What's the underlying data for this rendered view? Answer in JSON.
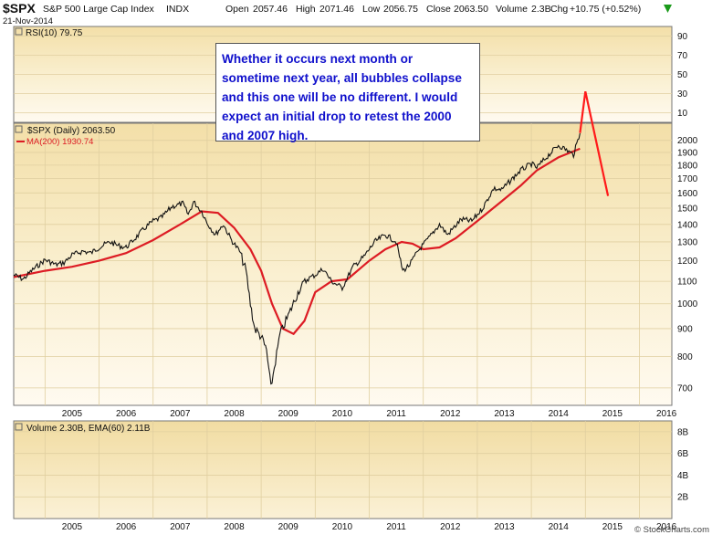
{
  "header": {
    "symbol": "$SPX",
    "name": "S&P 500 Large Cap Index",
    "exchange": "INDX",
    "date": "21-Nov-2014",
    "open_label": "Open",
    "open": "2057.46",
    "high_label": "High",
    "high": "2071.46",
    "low_label": "Low",
    "low": "2056.75",
    "close_label": "Close",
    "close": "2063.50",
    "volume_label": "Volume",
    "volume": "2.3B",
    "chg_label": "Chg",
    "chg": "+10.75 (+0.52%)",
    "watermark": "© StockCharts.com"
  },
  "annotation": {
    "text": "Whether it occurs next month or sometime next year, all bubbles collapse and this one will be no different. I would expect an initial drop to retest the 2000 and 2007 high."
  },
  "colors": {
    "price": "#111111",
    "ma": "#dd1c24",
    "projection": "#ff1a1a",
    "annotation_text": "#1010cc",
    "panel_bg": "#f5e3b4"
  },
  "chart_data": [
    {
      "type": "line",
      "panel": "rsi",
      "legend": "RSI(10) 79.75",
      "y_ticks": [
        10,
        30,
        50,
        70,
        90
      ],
      "ylim": [
        0,
        100
      ]
    },
    {
      "type": "line",
      "panel": "price",
      "legend_price": "$SPX (Daily) 2063.50",
      "legend_ma": "MA(200) 1930.74",
      "x_ticks": [
        "2005",
        "2006",
        "2007",
        "2008",
        "2009",
        "2010",
        "2011",
        "2012",
        "2013",
        "2014",
        "2015",
        "2016"
      ],
      "y_ticks": [
        700,
        800,
        900,
        1000,
        1100,
        1200,
        1300,
        1400,
        1500,
        1600,
        1700,
        1800,
        1900,
        2000
      ],
      "ylim": [
        650,
        2150
      ],
      "xlim": [
        2004.42,
        2016.6
      ],
      "log_scale": true,
      "series": [
        {
          "key": "price",
          "x": [
            2004.42,
            2004.6,
            2004.75,
            2005.0,
            2005.2,
            2005.35,
            2005.5,
            2005.7,
            2005.85,
            2006.0,
            2006.2,
            2006.35,
            2006.5,
            2006.7,
            2006.85,
            2007.0,
            2007.15,
            2007.35,
            2007.55,
            2007.65,
            2007.75,
            2007.9,
            2008.0,
            2008.15,
            2008.3,
            2008.45,
            2008.6,
            2008.72,
            2008.8,
            2008.88,
            2009.0,
            2009.1,
            2009.18,
            2009.35,
            2009.5,
            2009.7,
            2009.85,
            2010.0,
            2010.15,
            2010.3,
            2010.5,
            2010.7,
            2010.9,
            2011.1,
            2011.3,
            2011.5,
            2011.62,
            2011.75,
            2011.9,
            2012.1,
            2012.3,
            2012.45,
            2012.7,
            2012.9,
            2013.1,
            2013.3,
            2013.45,
            2013.6,
            2013.8,
            2014.0,
            2014.1,
            2014.3,
            2014.5,
            2014.65,
            2014.78,
            2014.9
          ],
          "y": [
            1130,
            1110,
            1150,
            1205,
            1180,
            1190,
            1230,
            1250,
            1240,
            1270,
            1300,
            1280,
            1270,
            1330,
            1380,
            1420,
            1440,
            1510,
            1530,
            1460,
            1540,
            1480,
            1410,
            1340,
            1400,
            1310,
            1250,
            1150,
            1000,
            900,
            870,
            820,
            700,
            880,
            950,
            1060,
            1110,
            1130,
            1160,
            1100,
            1070,
            1170,
            1220,
            1300,
            1340,
            1300,
            1150,
            1180,
            1250,
            1320,
            1400,
            1340,
            1430,
            1420,
            1500,
            1630,
            1620,
            1680,
            1760,
            1810,
            1780,
            1870,
            1960,
            1920,
            1880,
            2060
          ]
        },
        {
          "key": "ma200",
          "x": [
            2004.42,
            2005.0,
            2005.5,
            2006.0,
            2006.5,
            2007.0,
            2007.5,
            2007.9,
            2008.2,
            2008.5,
            2008.8,
            2009.0,
            2009.2,
            2009.4,
            2009.6,
            2009.8,
            2010.0,
            2010.3,
            2010.6,
            2011.0,
            2011.3,
            2011.6,
            2011.8,
            2012.0,
            2012.3,
            2012.6,
            2013.0,
            2013.4,
            2013.8,
            2014.1,
            2014.5,
            2014.9
          ],
          "y": [
            1120,
            1150,
            1170,
            1200,
            1240,
            1310,
            1400,
            1480,
            1470,
            1380,
            1260,
            1150,
            1000,
            900,
            880,
            930,
            1050,
            1100,
            1110,
            1200,
            1260,
            1300,
            1290,
            1260,
            1270,
            1320,
            1420,
            1530,
            1650,
            1760,
            1860,
            1930
          ]
        },
        {
          "key": "projection",
          "x": [
            2014.9,
            2015.0,
            2015.42
          ],
          "y": [
            2063,
            2460,
            1580
          ]
        }
      ]
    },
    {
      "type": "bar",
      "panel": "volume",
      "legend": "Volume 2.30B, EMA(60) 2.11B",
      "y_ticks": [
        "2B",
        "4B",
        "6B",
        "8B"
      ],
      "ylim": [
        0,
        9
      ],
      "x_ticks": [
        "2005",
        "2006",
        "2007",
        "2008",
        "2009",
        "2010",
        "2011",
        "2012",
        "2013",
        "2014",
        "2015",
        "2016"
      ]
    }
  ]
}
